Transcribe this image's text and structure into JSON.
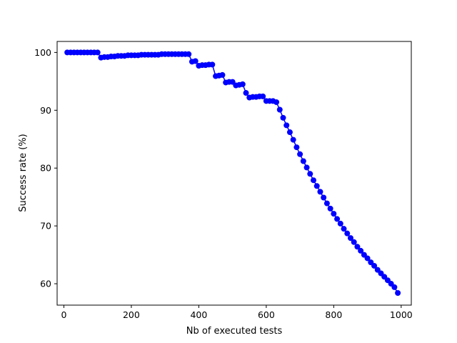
{
  "chart_data": {
    "type": "line",
    "title": "",
    "xlabel": "Nb of executed tests",
    "ylabel": "Success rate (%)",
    "xlim": [
      -20,
      1030
    ],
    "ylim": [
      56.3,
      101.9
    ],
    "xticks": [
      0,
      200,
      400,
      600,
      800,
      1000
    ],
    "xtick_labels": [
      "0",
      "200",
      "400",
      "600",
      "800",
      "1000"
    ],
    "yticks": [
      60,
      70,
      80,
      90,
      100
    ],
    "ytick_labels": [
      "60",
      "70",
      "80",
      "90",
      "100"
    ],
    "grid": false,
    "legend": "none",
    "series": [
      {
        "color": "#0000ff",
        "marker": "circle",
        "x": [
          10,
          20,
          30,
          40,
          50,
          60,
          70,
          80,
          90,
          100,
          110,
          120,
          130,
          140,
          150,
          160,
          170,
          180,
          190,
          200,
          210,
          220,
          230,
          240,
          250,
          260,
          270,
          280,
          290,
          300,
          310,
          320,
          330,
          340,
          350,
          360,
          370,
          380,
          390,
          400,
          410,
          420,
          430,
          440,
          450,
          460,
          470,
          480,
          490,
          500,
          510,
          520,
          530,
          540,
          550,
          560,
          570,
          580,
          590,
          600,
          610,
          620,
          630,
          640,
          650,
          660,
          670,
          680,
          690,
          700,
          710,
          720,
          730,
          740,
          750,
          760,
          770,
          780,
          790,
          800,
          810,
          820,
          830,
          840,
          850,
          860,
          870,
          880,
          890,
          900,
          910,
          920,
          930,
          940,
          950,
          960,
          970,
          980,
          990
        ],
        "y": [
          100.0,
          100.0,
          100.0,
          100.0,
          100.0,
          100.0,
          100.0,
          100.0,
          100.0,
          100.0,
          99.1,
          99.2,
          99.2,
          99.3,
          99.3,
          99.4,
          99.4,
          99.4,
          99.5,
          99.5,
          99.5,
          99.5,
          99.6,
          99.6,
          99.6,
          99.6,
          99.6,
          99.6,
          99.7,
          99.7,
          99.7,
          99.7,
          99.7,
          99.7,
          99.7,
          99.7,
          99.7,
          98.4,
          98.5,
          97.7,
          97.8,
          97.8,
          97.9,
          97.9,
          95.9,
          96.0,
          96.1,
          94.8,
          94.9,
          94.9,
          94.3,
          94.4,
          94.5,
          93.0,
          92.2,
          92.3,
          92.3,
          92.4,
          92.4,
          91.6,
          91.6,
          91.6,
          91.4,
          90.1,
          88.7,
          87.4,
          86.2,
          84.9,
          83.6,
          82.4,
          81.2,
          80.1,
          79.0,
          77.9,
          76.9,
          75.9,
          74.9,
          73.9,
          73.0,
          72.1,
          71.2,
          70.4,
          69.5,
          68.7,
          67.9,
          67.2,
          66.4,
          65.7,
          65.0,
          64.4,
          63.7,
          63.1,
          62.4,
          61.8,
          61.2,
          60.6,
          60.0,
          59.4,
          58.4
        ]
      }
    ]
  }
}
